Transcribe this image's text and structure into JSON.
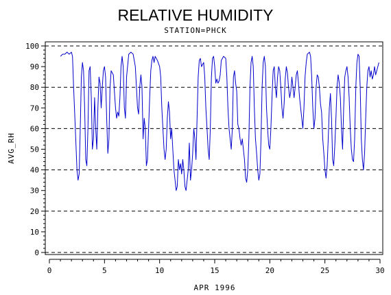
{
  "chart_data": {
    "type": "line",
    "title": "RELATIVE HUMIDITY",
    "subtitle": "STATION=PHCK",
    "xlabel": "APR 1996",
    "ylabel": "AVG_RH",
    "xlim": [
      0,
      30
    ],
    "ylim": [
      0,
      100
    ],
    "x_ticks": [
      0,
      5,
      10,
      15,
      20,
      25,
      30
    ],
    "y_ticks": [
      0,
      10,
      20,
      30,
      40,
      50,
      60,
      70,
      80,
      90,
      100
    ],
    "y_gridlines": [
      0,
      20,
      40,
      60,
      80,
      100
    ],
    "grid_style": "dashed horizontal",
    "series": [
      {
        "color": "#0000cc",
        "points": [
          [
            1.0,
            95
          ],
          [
            1.2,
            96
          ],
          [
            1.4,
            96
          ],
          [
            1.6,
            97
          ],
          [
            1.8,
            96
          ],
          [
            2.0,
            97
          ],
          [
            2.1,
            95
          ],
          [
            2.2,
            80
          ],
          [
            2.35,
            60
          ],
          [
            2.5,
            40
          ],
          [
            2.6,
            35
          ],
          [
            2.7,
            38
          ],
          [
            2.8,
            60
          ],
          [
            2.9,
            85
          ],
          [
            3.0,
            92
          ],
          [
            3.1,
            88
          ],
          [
            3.2,
            70
          ],
          [
            3.3,
            45
          ],
          [
            3.4,
            42
          ],
          [
            3.5,
            60
          ],
          [
            3.6,
            88
          ],
          [
            3.7,
            90
          ],
          [
            3.8,
            75
          ],
          [
            3.9,
            50
          ],
          [
            4.0,
            55
          ],
          [
            4.1,
            75
          ],
          [
            4.2,
            60
          ],
          [
            4.3,
            50
          ],
          [
            4.4,
            70
          ],
          [
            4.5,
            85
          ],
          [
            4.6,
            82
          ],
          [
            4.7,
            70
          ],
          [
            4.8,
            80
          ],
          [
            4.9,
            88
          ],
          [
            5.0,
            90
          ],
          [
            5.1,
            85
          ],
          [
            5.2,
            65
          ],
          [
            5.3,
            48
          ],
          [
            5.4,
            55
          ],
          [
            5.5,
            80
          ],
          [
            5.6,
            88
          ],
          [
            5.8,
            86
          ],
          [
            6.0,
            70
          ],
          [
            6.1,
            65
          ],
          [
            6.2,
            68
          ],
          [
            6.3,
            66
          ],
          [
            6.4,
            75
          ],
          [
            6.5,
            90
          ],
          [
            6.6,
            95
          ],
          [
            6.7,
            90
          ],
          [
            6.8,
            70
          ],
          [
            6.9,
            65
          ],
          [
            7.0,
            85
          ],
          [
            7.2,
            96
          ],
          [
            7.4,
            97
          ],
          [
            7.6,
            96
          ],
          [
            7.8,
            90
          ],
          [
            7.9,
            80
          ],
          [
            8.0,
            70
          ],
          [
            8.1,
            67
          ],
          [
            8.2,
            80
          ],
          [
            8.3,
            86
          ],
          [
            8.4,
            80
          ],
          [
            8.5,
            55
          ],
          [
            8.6,
            65
          ],
          [
            8.7,
            60
          ],
          [
            8.8,
            42
          ],
          [
            8.9,
            45
          ],
          [
            9.0,
            60
          ],
          [
            9.1,
            75
          ],
          [
            9.2,
            88
          ],
          [
            9.3,
            93
          ],
          [
            9.4,
            95
          ],
          [
            9.5,
            92
          ],
          [
            9.6,
            95
          ],
          [
            9.8,
            93
          ],
          [
            10.0,
            90
          ],
          [
            10.1,
            85
          ],
          [
            10.2,
            70
          ],
          [
            10.3,
            60
          ],
          [
            10.4,
            50
          ],
          [
            10.5,
            45
          ],
          [
            10.6,
            50
          ],
          [
            10.7,
            65
          ],
          [
            10.8,
            73
          ],
          [
            10.9,
            68
          ],
          [
            11.0,
            55
          ],
          [
            11.1,
            60
          ],
          [
            11.2,
            50
          ],
          [
            11.3,
            40
          ],
          [
            11.4,
            35
          ],
          [
            11.5,
            30
          ],
          [
            11.6,
            32
          ],
          [
            11.7,
            45
          ],
          [
            11.8,
            40
          ],
          [
            11.9,
            43
          ],
          [
            12.0,
            38
          ],
          [
            12.1,
            45
          ],
          [
            12.2,
            40
          ],
          [
            12.3,
            32
          ],
          [
            12.4,
            30
          ],
          [
            12.5,
            35
          ],
          [
            12.6,
            40
          ],
          [
            12.7,
            53
          ],
          [
            12.8,
            35
          ],
          [
            12.9,
            40
          ],
          [
            13.0,
            48
          ],
          [
            13.1,
            60
          ],
          [
            13.2,
            55
          ],
          [
            13.3,
            45
          ],
          [
            13.4,
            65
          ],
          [
            13.5,
            85
          ],
          [
            13.6,
            93
          ],
          [
            13.7,
            94
          ],
          [
            13.8,
            90
          ],
          [
            14.0,
            92
          ],
          [
            14.1,
            85
          ],
          [
            14.2,
            70
          ],
          [
            14.3,
            60
          ],
          [
            14.4,
            50
          ],
          [
            14.5,
            45
          ],
          [
            14.6,
            60
          ],
          [
            14.7,
            85
          ],
          [
            14.8,
            94
          ],
          [
            14.9,
            95
          ],
          [
            15.0,
            90
          ],
          [
            15.1,
            82
          ],
          [
            15.2,
            84
          ],
          [
            15.3,
            82
          ],
          [
            15.4,
            83
          ],
          [
            15.5,
            86
          ],
          [
            15.6,
            93
          ],
          [
            15.8,
            95
          ],
          [
            16.0,
            94
          ],
          [
            16.1,
            85
          ],
          [
            16.2,
            70
          ],
          [
            16.3,
            60
          ],
          [
            16.4,
            55
          ],
          [
            16.5,
            50
          ],
          [
            16.6,
            60
          ],
          [
            16.7,
            85
          ],
          [
            16.8,
            88
          ],
          [
            16.9,
            82
          ],
          [
            17.0,
            78
          ],
          [
            17.1,
            62
          ],
          [
            17.2,
            60
          ],
          [
            17.3,
            55
          ],
          [
            17.4,
            52
          ],
          [
            17.5,
            55
          ],
          [
            17.6,
            50
          ],
          [
            17.7,
            45
          ],
          [
            17.8,
            36
          ],
          [
            17.9,
            34
          ],
          [
            18.0,
            40
          ],
          [
            18.1,
            55
          ],
          [
            18.2,
            80
          ],
          [
            18.3,
            92
          ],
          [
            18.4,
            95
          ],
          [
            18.5,
            90
          ],
          [
            18.6,
            70
          ],
          [
            18.7,
            55
          ],
          [
            18.8,
            48
          ],
          [
            18.9,
            40
          ],
          [
            19.0,
            35
          ],
          [
            19.1,
            38
          ],
          [
            19.2,
            55
          ],
          [
            19.3,
            80
          ],
          [
            19.4,
            92
          ],
          [
            19.5,
            95
          ],
          [
            19.6,
            90
          ],
          [
            19.7,
            70
          ],
          [
            19.8,
            60
          ],
          [
            19.9,
            52
          ],
          [
            20.0,
            50
          ],
          [
            20.1,
            60
          ],
          [
            20.2,
            75
          ],
          [
            20.3,
            88
          ],
          [
            20.4,
            90
          ],
          [
            20.5,
            80
          ],
          [
            20.6,
            75
          ],
          [
            20.7,
            85
          ],
          [
            20.8,
            90
          ],
          [
            20.9,
            88
          ],
          [
            21.0,
            80
          ],
          [
            21.1,
            70
          ],
          [
            21.2,
            65
          ],
          [
            21.3,
            72
          ],
          [
            21.4,
            84
          ],
          [
            21.5,
            90
          ],
          [
            21.6,
            87
          ],
          [
            21.7,
            80
          ],
          [
            21.8,
            75
          ],
          [
            21.9,
            78
          ],
          [
            22.0,
            85
          ],
          [
            22.1,
            80
          ],
          [
            22.2,
            75
          ],
          [
            22.3,
            80
          ],
          [
            22.4,
            86
          ],
          [
            22.5,
            88
          ],
          [
            22.6,
            82
          ],
          [
            22.7,
            75
          ],
          [
            22.8,
            70
          ],
          [
            22.9,
            65
          ],
          [
            23.0,
            60
          ],
          [
            23.1,
            70
          ],
          [
            23.2,
            85
          ],
          [
            23.3,
            92
          ],
          [
            23.4,
            96
          ],
          [
            23.6,
            97
          ],
          [
            23.7,
            95
          ],
          [
            23.8,
            85
          ],
          [
            23.9,
            70
          ],
          [
            24.0,
            60
          ],
          [
            24.1,
            65
          ],
          [
            24.2,
            80
          ],
          [
            24.3,
            86
          ],
          [
            24.4,
            85
          ],
          [
            24.5,
            80
          ],
          [
            24.6,
            72
          ],
          [
            24.7,
            68
          ],
          [
            24.8,
            55
          ],
          [
            24.9,
            48
          ],
          [
            25.0,
            40
          ],
          [
            25.1,
            36
          ],
          [
            25.2,
            42
          ],
          [
            25.3,
            55
          ],
          [
            25.4,
            70
          ],
          [
            25.5,
            77
          ],
          [
            25.6,
            65
          ],
          [
            25.7,
            45
          ],
          [
            25.8,
            42
          ],
          [
            25.9,
            52
          ],
          [
            26.0,
            65
          ],
          [
            26.1,
            80
          ],
          [
            26.2,
            86
          ],
          [
            26.3,
            82
          ],
          [
            26.4,
            75
          ],
          [
            26.5,
            60
          ],
          [
            26.6,
            50
          ],
          [
            26.7,
            70
          ],
          [
            26.8,
            85
          ],
          [
            26.9,
            88
          ],
          [
            27.0,
            90
          ],
          [
            27.1,
            85
          ],
          [
            27.2,
            75
          ],
          [
            27.3,
            60
          ],
          [
            27.4,
            50
          ],
          [
            27.5,
            45
          ],
          [
            27.6,
            44
          ],
          [
            27.7,
            55
          ],
          [
            27.8,
            80
          ],
          [
            27.9,
            92
          ],
          [
            28.0,
            96
          ],
          [
            28.1,
            95
          ],
          [
            28.2,
            80
          ],
          [
            28.3,
            55
          ],
          [
            28.4,
            45
          ],
          [
            28.5,
            40
          ],
          [
            28.6,
            48
          ],
          [
            28.7,
            65
          ],
          [
            28.8,
            80
          ],
          [
            28.9,
            88
          ],
          [
            29.0,
            90
          ],
          [
            29.1,
            85
          ],
          [
            29.2,
            88
          ],
          [
            29.3,
            84
          ],
          [
            29.4,
            86
          ],
          [
            29.5,
            90
          ],
          [
            29.6,
            86
          ],
          [
            29.7,
            88
          ],
          [
            29.8,
            90
          ],
          [
            29.9,
            92
          ]
        ]
      }
    ]
  }
}
